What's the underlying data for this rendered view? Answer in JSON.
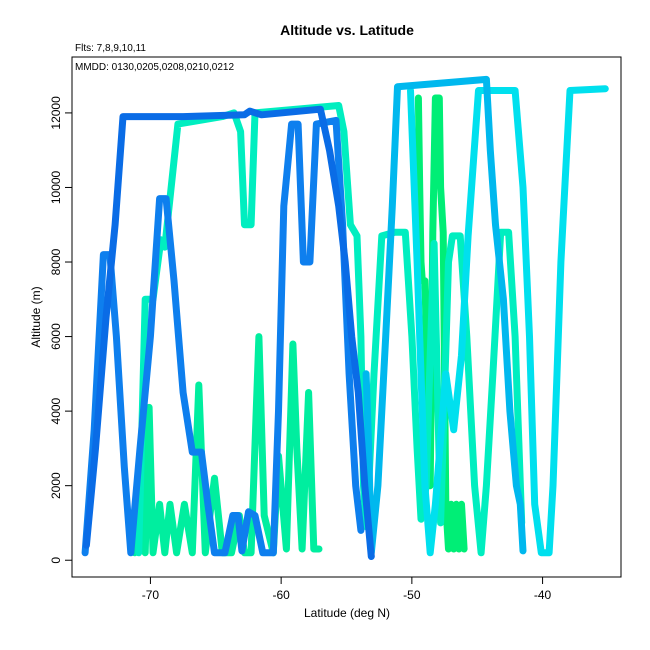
{
  "chart_data": {
    "type": "line",
    "title": "Altitude vs. Latitude",
    "fits_note": "Flts: 7,8,9,10,11",
    "mmdd_note": "MMDD: 0130,0205,0208,0210,0212",
    "xlabel": "Latitude (deg N)",
    "ylabel": "Altitude (m)",
    "xlim": [
      -76,
      -34
    ],
    "ylim": [
      -450,
      13500
    ],
    "xticks": [
      -70,
      -60,
      -50,
      -40
    ],
    "yticks": [
      0,
      2000,
      4000,
      6000,
      8000,
      10000,
      12000
    ],
    "grid": false,
    "legend": "none",
    "series": [
      {
        "color": "#00ee76",
        "points": [
          [
            -49.5,
            12400
          ],
          [
            -49.4,
            10000
          ],
          [
            -49.3,
            8000
          ],
          [
            -49.2,
            7500
          ],
          [
            -49.0,
            7500
          ],
          [
            -48.6,
            2000
          ],
          [
            -48.4,
            8800
          ],
          [
            -48.2,
            12400
          ],
          [
            -47.9,
            12400
          ],
          [
            -47.8,
            10000
          ],
          [
            -47.6,
            8800
          ],
          [
            -47.4,
            1500
          ],
          [
            -47.2,
            300
          ],
          [
            -47.0,
            1500
          ],
          [
            -46.8,
            300
          ],
          [
            -46.6,
            1500
          ],
          [
            -46.4,
            300
          ],
          [
            -46.2,
            1500
          ],
          [
            -46.0,
            300
          ]
        ]
      },
      {
        "color": "#00ee9f",
        "points": [
          [
            -71.2,
            200
          ],
          [
            -70.8,
            1500
          ],
          [
            -70.4,
            200
          ],
          [
            -70.1,
            4100
          ],
          [
            -69.8,
            200
          ],
          [
            -69.3,
            1500
          ],
          [
            -68.9,
            200
          ],
          [
            -68.5,
            1500
          ],
          [
            -68.0,
            200
          ],
          [
            -67.4,
            1500
          ],
          [
            -66.8,
            200
          ],
          [
            -66.3,
            4700
          ],
          [
            -65.8,
            200
          ],
          [
            -65.1,
            2200
          ],
          [
            -64.5,
            200
          ],
          [
            -63.8,
            200
          ],
          [
            -63.2,
            1200
          ],
          [
            -62.8,
            200
          ],
          [
            -62.3,
            200
          ],
          [
            -61.7,
            6000
          ],
          [
            -61.3,
            1200
          ],
          [
            -60.6,
            200
          ],
          [
            -60.2,
            2800
          ],
          [
            -59.6,
            300
          ],
          [
            -59.1,
            5800
          ],
          [
            -58.8,
            3000
          ],
          [
            -58.4,
            300
          ],
          [
            -57.9,
            4500
          ],
          [
            -57.5,
            300
          ],
          [
            -57.1,
            300
          ]
        ]
      },
      {
        "color": "#00eec0",
        "points": [
          [
            -70.9,
            200
          ],
          [
            -70.4,
            7000
          ],
          [
            -69.8,
            7000
          ],
          [
            -69.2,
            8600
          ],
          [
            -68.9,
            8400
          ],
          [
            -67.9,
            11700
          ],
          [
            -64.5,
            11900
          ],
          [
            -63.6,
            12000
          ],
          [
            -63.1,
            11500
          ],
          [
            -62.8,
            9000
          ],
          [
            -62.3,
            9000
          ],
          [
            -62.0,
            12000
          ],
          [
            -55.6,
            12200
          ],
          [
            -55.2,
            11500
          ],
          [
            -54.7,
            9000
          ],
          [
            -54.2,
            8700
          ],
          [
            -53.9,
            6000
          ],
          [
            -53.7,
            2000
          ],
          [
            -53.5,
            900
          ],
          [
            -53.3,
            2000
          ],
          [
            -52.9,
            5000
          ],
          [
            -52.3,
            8700
          ],
          [
            -51.3,
            8800
          ],
          [
            -50.5,
            8800
          ],
          [
            -50.0,
            6000
          ],
          [
            -49.6,
            3000
          ],
          [
            -49.3,
            1100
          ],
          [
            -48.9,
            2000
          ],
          [
            -48.6,
            5500
          ],
          [
            -48.3,
            8500
          ],
          [
            -47.8,
            1000
          ],
          [
            -47.2,
            8000
          ],
          [
            -46.9,
            8700
          ],
          [
            -46.3,
            8700
          ],
          [
            -45.8,
            6000
          ],
          [
            -45.2,
            2000
          ],
          [
            -44.7,
            200
          ],
          [
            -44.3,
            2000
          ],
          [
            -43.8,
            5000
          ],
          [
            -43.2,
            8800
          ],
          [
            -42.6,
            8800
          ],
          [
            -42.1,
            6000
          ],
          [
            -41.6,
            1000
          ]
        ]
      },
      {
        "color": "#00e0ee",
        "points": [
          [
            -50.1,
            12600
          ],
          [
            -49.6,
            8000
          ],
          [
            -49.0,
            2000
          ],
          [
            -48.6,
            200
          ],
          [
            -48.2,
            1500
          ],
          [
            -47.4,
            5000
          ],
          [
            -46.8,
            3500
          ],
          [
            -46.2,
            5500
          ],
          [
            -45.7,
            8700
          ],
          [
            -44.9,
            12600
          ],
          [
            -42.1,
            12600
          ],
          [
            -41.5,
            10000
          ],
          [
            -41.0,
            6000
          ],
          [
            -40.6,
            1500
          ],
          [
            -40.1,
            200
          ],
          [
            -39.5,
            200
          ],
          [
            -39.2,
            2000
          ],
          [
            -38.9,
            5000
          ],
          [
            -38.6,
            8000
          ],
          [
            -38.3,
            10000
          ],
          [
            -37.9,
            12600
          ],
          [
            -35.2,
            12650
          ]
        ]
      },
      {
        "color": "#00b8ee",
        "points": [
          [
            -53.5,
            5000
          ],
          [
            -53.3,
            3000
          ],
          [
            -53.1,
            200
          ],
          [
            -52.6,
            2000
          ],
          [
            -52.0,
            6000
          ],
          [
            -51.5,
            9500
          ],
          [
            -51.1,
            12700
          ],
          [
            -44.3,
            12900
          ],
          [
            -44.0,
            11000
          ],
          [
            -43.6,
            9000
          ],
          [
            -43.0,
            7000
          ],
          [
            -42.5,
            4000
          ],
          [
            -42.0,
            2000
          ],
          [
            -41.7,
            1500
          ],
          [
            -41.5,
            250
          ]
        ]
      },
      {
        "color": "#0e7fee",
        "points": [
          [
            -75.0,
            200
          ],
          [
            -74.3,
            3500
          ],
          [
            -73.6,
            8200
          ],
          [
            -73.1,
            8200
          ],
          [
            -72.6,
            6000
          ],
          [
            -72.0,
            2500
          ],
          [
            -71.5,
            200
          ],
          [
            -70.8,
            3000
          ],
          [
            -70.0,
            6000
          ],
          [
            -69.3,
            9700
          ],
          [
            -68.8,
            9700
          ],
          [
            -68.2,
            7500
          ],
          [
            -67.5,
            4500
          ],
          [
            -66.8,
            2900
          ],
          [
            -66.1,
            2900
          ],
          [
            -65.6,
            1500
          ],
          [
            -65.1,
            200
          ],
          [
            -64.3,
            200
          ],
          [
            -63.7,
            1200
          ],
          [
            -63.3,
            1200
          ],
          [
            -63.0,
            250
          ],
          [
            -62.5,
            1300
          ],
          [
            -62.0,
            1200
          ],
          [
            -61.4,
            200
          ],
          [
            -60.6,
            200
          ],
          [
            -60.2,
            4000
          ],
          [
            -59.8,
            9500
          ],
          [
            -59.2,
            11700
          ],
          [
            -58.7,
            11700
          ],
          [
            -58.3,
            8000
          ],
          [
            -57.8,
            8000
          ],
          [
            -57.3,
            11700
          ],
          [
            -55.8,
            11800
          ],
          [
            -55.3,
            9000
          ],
          [
            -54.8,
            5000
          ],
          [
            -54.3,
            2000
          ],
          [
            -53.9,
            800
          ]
        ]
      },
      {
        "color": "#0a6ce6",
        "points": [
          [
            -74.9,
            400
          ],
          [
            -74.2,
            3000
          ],
          [
            -73.4,
            6500
          ],
          [
            -72.7,
            9000
          ],
          [
            -72.1,
            11900
          ],
          [
            -67.5,
            11900
          ],
          [
            -62.8,
            11950
          ],
          [
            -62.4,
            12050
          ],
          [
            -61.5,
            11950
          ],
          [
            -57.0,
            12100
          ],
          [
            -56.3,
            11000
          ],
          [
            -55.6,
            9500
          ],
          [
            -55.1,
            8000
          ],
          [
            -54.6,
            6000
          ],
          [
            -54.1,
            4500
          ],
          [
            -53.6,
            2000
          ],
          [
            -53.1,
            100
          ]
        ]
      }
    ]
  }
}
